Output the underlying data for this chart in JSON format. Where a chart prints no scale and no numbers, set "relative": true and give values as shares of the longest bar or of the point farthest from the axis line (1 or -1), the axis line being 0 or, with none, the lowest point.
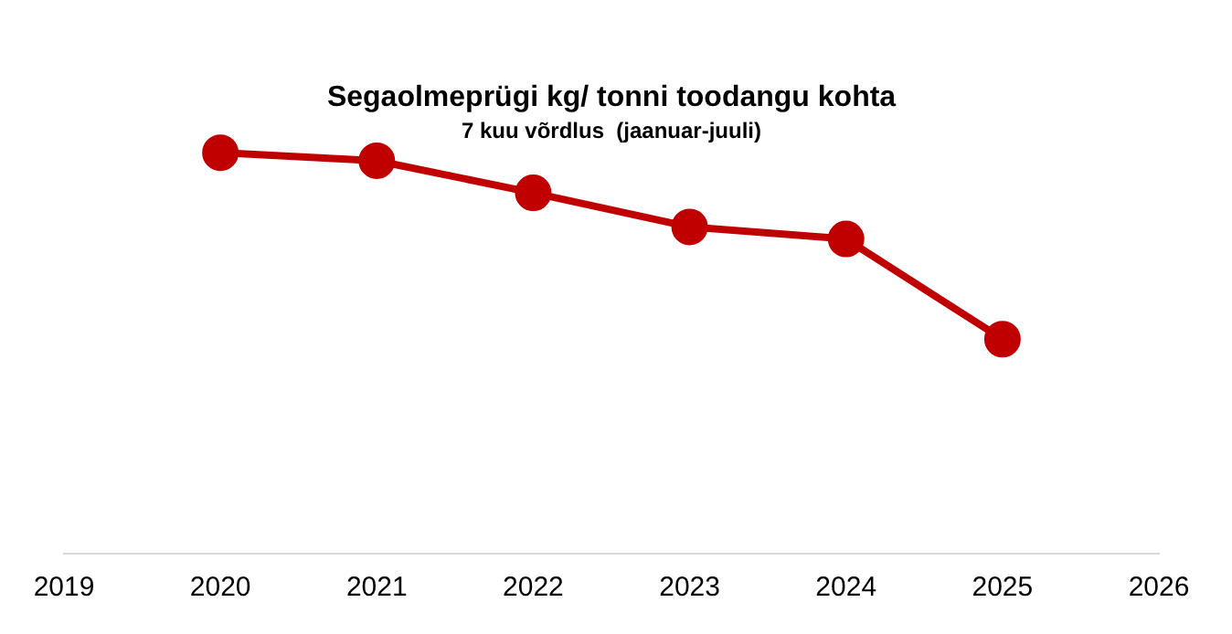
{
  "chart_data": {
    "type": "line",
    "title": "Segaolmeprügi kg/ tonni toodangu kohta",
    "subtitle": "7 kuu võrdlus  (jaanuar-juuli)",
    "relative": true,
    "x": [
      2020,
      2021,
      2022,
      2023,
      2024,
      2025
    ],
    "xlim": [
      2019,
      2026
    ],
    "xticks": [
      2019,
      2020,
      2021,
      2022,
      2023,
      2024,
      2025,
      2026
    ],
    "series": [
      {
        "color": "#c00000",
        "values": [
          1,
          0.98,
          0.9,
          0.815,
          0.785,
          0.535
        ]
      }
    ],
    "marker": "circle",
    "line_style": "solid",
    "grid": false,
    "legend": false
  }
}
